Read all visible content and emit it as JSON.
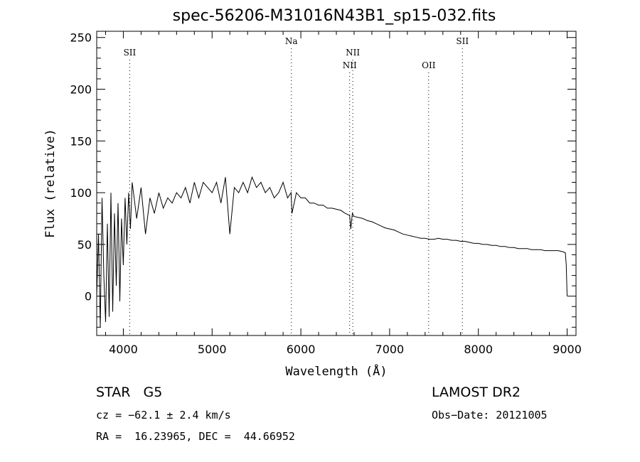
{
  "chart_data": {
    "type": "line",
    "title": "spec-56206-M31016N43B1_sp15-032.fits",
    "xlabel": "Wavelength (Å)",
    "ylabel": "Flux (relative)",
    "xlim": [
      3700,
      9100
    ],
    "ylim": [
      -38,
      256
    ],
    "x_ticks": [
      4000,
      5000,
      6000,
      7000,
      8000,
      9000
    ],
    "y_ticks": [
      0,
      50,
      100,
      150,
      200,
      250
    ],
    "series": [
      {
        "x": [
          3700,
          3720,
          3740,
          3760,
          3780,
          3800,
          3820,
          3840,
          3860,
          3880,
          3900,
          3920,
          3940,
          3960,
          3980,
          4000,
          4020,
          4040,
          4060,
          4080,
          4100,
          4150,
          4200,
          4250,
          4300,
          4350,
          4400,
          4450,
          4500,
          4550,
          4600,
          4650,
          4700,
          4750,
          4800,
          4850,
          4900,
          4950,
          5000,
          5050,
          5100,
          5150,
          5200,
          5250,
          5300,
          5350,
          5400,
          5450,
          5500,
          5550,
          5600,
          5650,
          5700,
          5750,
          5800,
          5850,
          5890,
          5900,
          5950,
          6000,
          6050,
          6100,
          6150,
          6200,
          6250,
          6300,
          6350,
          6400,
          6450,
          6500,
          6550,
          6563,
          6580,
          6600,
          6650,
          6700,
          6750,
          6800,
          6850,
          6900,
          6950,
          7000,
          7050,
          7100,
          7150,
          7200,
          7250,
          7300,
          7350,
          7400,
          7450,
          7500,
          7550,
          7600,
          7650,
          7700,
          7750,
          7800,
          7850,
          7900,
          7950,
          8000,
          8050,
          8100,
          8150,
          8200,
          8250,
          8300,
          8350,
          8400,
          8450,
          8500,
          8550,
          8600,
          8650,
          8700,
          8750,
          8800,
          8850,
          8900,
          8950,
          8980,
          8990,
          9000
        ],
        "values": [
          0,
          60,
          -30,
          95,
          20,
          -25,
          70,
          -20,
          100,
          -15,
          80,
          10,
          90,
          -5,
          75,
          30,
          95,
          50,
          100,
          65,
          110,
          75,
          105,
          60,
          95,
          80,
          100,
          85,
          95,
          90,
          100,
          95,
          105,
          90,
          110,
          95,
          110,
          105,
          100,
          110,
          90,
          115,
          60,
          105,
          100,
          110,
          100,
          115,
          105,
          110,
          100,
          105,
          95,
          100,
          110,
          95,
          100,
          80,
          100,
          95,
          95,
          90,
          90,
          88,
          88,
          85,
          85,
          84,
          83,
          80,
          78,
          65,
          80,
          77,
          76,
          75,
          73,
          72,
          70,
          68,
          66,
          65,
          64,
          62,
          60,
          59,
          58,
          57,
          56,
          56,
          55,
          55,
          56,
          55,
          55,
          54,
          54,
          53,
          53,
          52,
          51,
          51,
          50,
          50,
          49,
          49,
          48,
          48,
          47,
          47,
          46,
          46,
          46,
          45,
          45,
          45,
          44,
          44,
          44,
          44,
          43,
          42,
          30,
          0
        ]
      }
    ],
    "lines": [
      {
        "label": "SII",
        "x": 4072,
        "row": 1
      },
      {
        "label": "Na",
        "x": 5893,
        "row": 0
      },
      {
        "label": "NII",
        "x": 6550,
        "row": 2
      },
      {
        "label": "NII",
        "x": 6585,
        "row": 1
      },
      {
        "label": "OII",
        "x": 7440,
        "row": 2
      },
      {
        "label": "SII",
        "x": 7820,
        "row": 0
      }
    ]
  },
  "footer": {
    "class_label": "STAR   G5",
    "survey": "LAMOST DR2",
    "cz": "cz = −62.1 ± 2.4 km/s",
    "obs_date": "Obs−Date: 20121005",
    "coords": "RA =  16.23965, DEC =  44.66952"
  }
}
